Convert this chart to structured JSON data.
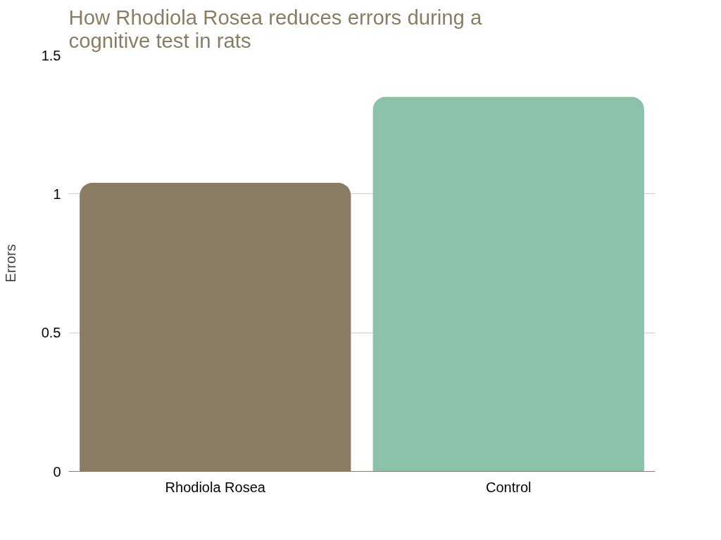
{
  "chart_data": {
    "type": "bar",
    "title": "How Rhodiola Rosea reduces errors during a cognitive test in rats",
    "ylabel": "Errors",
    "categories": [
      "Rhodiola Rosea",
      "Control"
    ],
    "values": [
      1.04,
      1.35
    ],
    "colors": [
      "#8b7d63",
      "#8bc3aa"
    ],
    "ylim": [
      0,
      1.5
    ],
    "yticks": [
      0,
      0.5,
      1,
      1.5
    ],
    "grid": "y"
  }
}
